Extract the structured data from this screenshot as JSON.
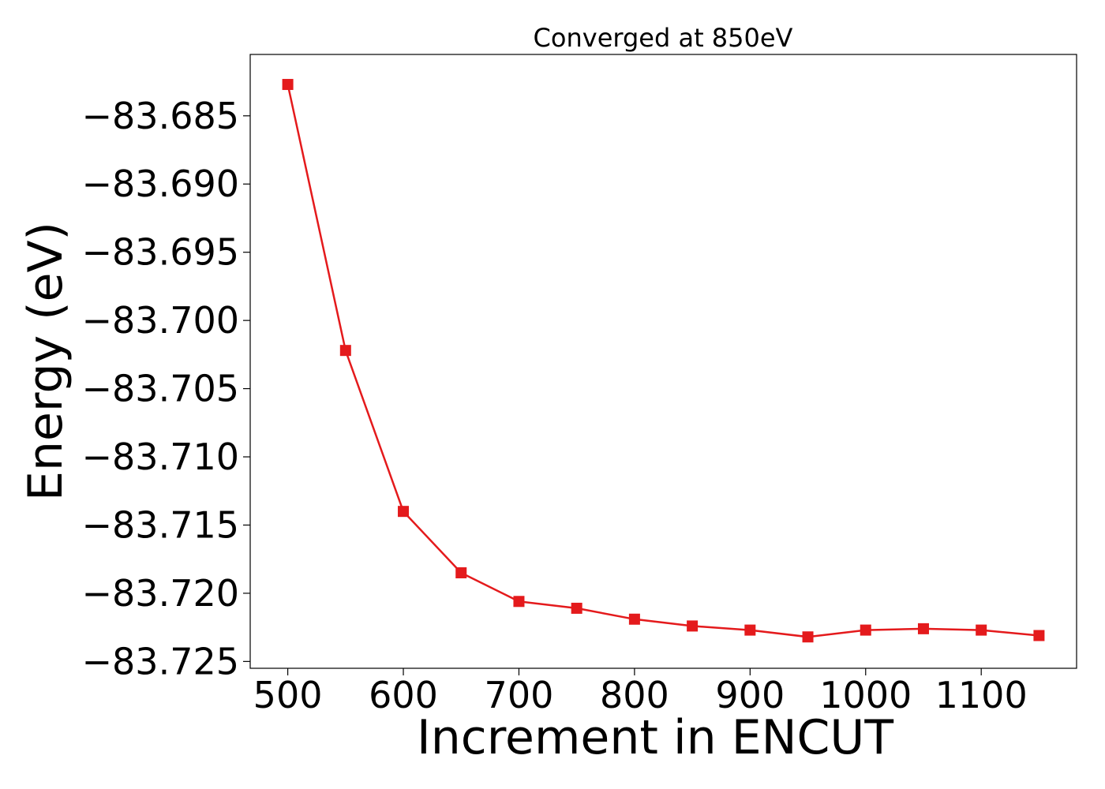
{
  "chart_data": {
    "type": "line",
    "title": "Converged at 850eV",
    "xlabel": "Increment in ENCUT",
    "ylabel": "Energy (eV)",
    "x": [
      500,
      550,
      600,
      650,
      700,
      750,
      800,
      850,
      900,
      950,
      1000,
      1050,
      1100,
      1150
    ],
    "series": [
      {
        "values": [
          -83.6827,
          -83.7022,
          -83.714,
          -83.7185,
          -83.7206,
          -83.7211,
          -83.7219,
          -83.7224,
          -83.7227,
          -83.7232,
          -83.7227,
          -83.7226,
          -83.7227,
          -83.7231
        ]
      }
    ],
    "xlim": [
      467.5,
      1182.5
    ],
    "ylim": [
      -83.7255,
      -83.6805
    ],
    "xticks": [
      500,
      600,
      700,
      800,
      900,
      1000,
      1100
    ],
    "xtick_labels": [
      "500",
      "600",
      "700",
      "800",
      "900",
      "1000",
      "1100"
    ],
    "yticks": [
      -83.685,
      -83.69,
      -83.695,
      -83.7,
      -83.705,
      -83.71,
      -83.715,
      -83.72,
      -83.725
    ],
    "ytick_labels": [
      "−83.685",
      "−83.690",
      "−83.695",
      "−83.700",
      "−83.705",
      "−83.710",
      "−83.715",
      "−83.720",
      "−83.725"
    ],
    "grid": false,
    "marker": "square",
    "line_color": "#e41a1c"
  }
}
